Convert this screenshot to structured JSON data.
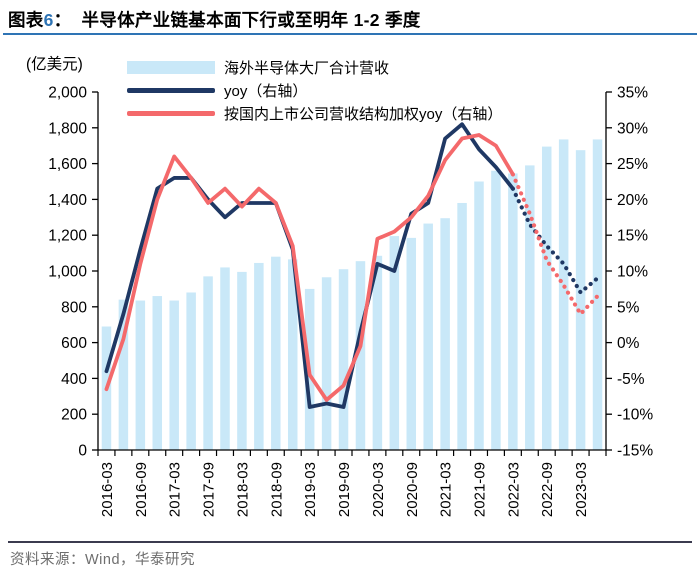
{
  "figure": {
    "id_prefix": "图表",
    "id_number": "6",
    "id_colon": "：",
    "title": "半导体产业链基本面下行或至明年 1-2 季度",
    "unit_label": "(亿美元)",
    "source_text": "资料来源：Wind，华泰研究"
  },
  "legend": [
    {
      "label": "海外半导体大厂合计营收",
      "type": "bar",
      "color": "#C9E8F8"
    },
    {
      "label": "yoy（右轴）",
      "type": "line",
      "color": "#1F3864"
    },
    {
      "label": "按国内上市公司营收结构加权yoy（右轴）",
      "type": "line",
      "color": "#F4696B"
    }
  ],
  "colors": {
    "bar_fill": "#C9E8F8",
    "yoy_line": "#1F3864",
    "weighted_yoy_line": "#F4696B",
    "title_accent": "#2E74B5",
    "axis": "#000000",
    "source_text": "#6e6e6e"
  },
  "chart_data": {
    "type": "bar",
    "title": "图表6：半导体产业链基本面下行或至明年 1-2 季度",
    "categories": [
      "2016-03",
      "2016-06",
      "2016-09",
      "2016-12",
      "2017-03",
      "2017-06",
      "2017-09",
      "2017-12",
      "2018-03",
      "2018-06",
      "2018-09",
      "2018-12",
      "2019-03",
      "2019-06",
      "2019-09",
      "2019-12",
      "2020-03",
      "2020-06",
      "2020-09",
      "2020-12",
      "2021-03",
      "2021-06",
      "2021-09",
      "2021-12",
      "2022-03",
      "2022-06",
      "2022-09",
      "2022-12",
      "2023-03",
      "2023-06"
    ],
    "x_tick_labels_shown": [
      "2016-03",
      "2016-09",
      "2017-03",
      "2017-09",
      "2018-03",
      "2018-09",
      "2019-03",
      "2019-09",
      "2020-03",
      "2020-09",
      "2021-03",
      "2021-09",
      "2022-03",
      "2022-09",
      "2023-03"
    ],
    "series": [
      {
        "name": "海外半导体大厂合计营收",
        "type": "bar",
        "axis": "left",
        "color": "#C9E8F8",
        "values": [
          690,
          840,
          835,
          860,
          835,
          880,
          970,
          1020,
          995,
          1045,
          1080,
          1065,
          900,
          965,
          1010,
          1055,
          1085,
          1195,
          1185,
          1265,
          1295,
          1380,
          1500,
          1560,
          1545,
          1590,
          1695,
          1735,
          1675,
          1735
        ]
      },
      {
        "name": "yoy（右轴）",
        "type": "line",
        "axis": "right",
        "color": "#1F3864",
        "solid_through": "2022-03",
        "dotted_from": "2022-06",
        "values": [
          -4,
          4,
          13,
          21.5,
          23,
          23,
          20,
          17.5,
          19.5,
          19.5,
          19.5,
          13,
          -9,
          -8.5,
          -9,
          1.5,
          11,
          10,
          18,
          19.5,
          28.5,
          30.5,
          27,
          24.5,
          21.5,
          16.5,
          13.5,
          11,
          7,
          9
        ]
      },
      {
        "name": "按国内上市公司营收结构加权yoy（右轴）",
        "type": "line",
        "axis": "right",
        "color": "#F4696B",
        "solid_through": "2022-03",
        "dotted_from": "2022-06",
        "values": [
          -6.5,
          0.5,
          11,
          20,
          26,
          23,
          19.5,
          21.5,
          19,
          21.5,
          19.5,
          13.5,
          -4.5,
          -8,
          -6,
          -0.5,
          14.5,
          15.5,
          17.5,
          20.5,
          25.5,
          28.5,
          29,
          27.5,
          23.5,
          18,
          11.5,
          8,
          4,
          6.5
        ]
      }
    ],
    "left_axis": {
      "label": "(亿美元)",
      "range": [
        0,
        2000
      ],
      "tick_step": 200,
      "tick_labels": [
        "0",
        "200",
        "400",
        "600",
        "800",
        "1,000",
        "1,200",
        "1,400",
        "1,600",
        "1,800",
        "2,000"
      ]
    },
    "right_axis": {
      "range": [
        -15,
        35
      ],
      "tick_step": 5,
      "tick_labels": [
        "-15%",
        "-10%",
        "-5%",
        "0%",
        "5%",
        "10%",
        "15%",
        "20%",
        "25%",
        "30%",
        "35%"
      ]
    },
    "grid": false,
    "legend_position": "top-left-inside"
  }
}
